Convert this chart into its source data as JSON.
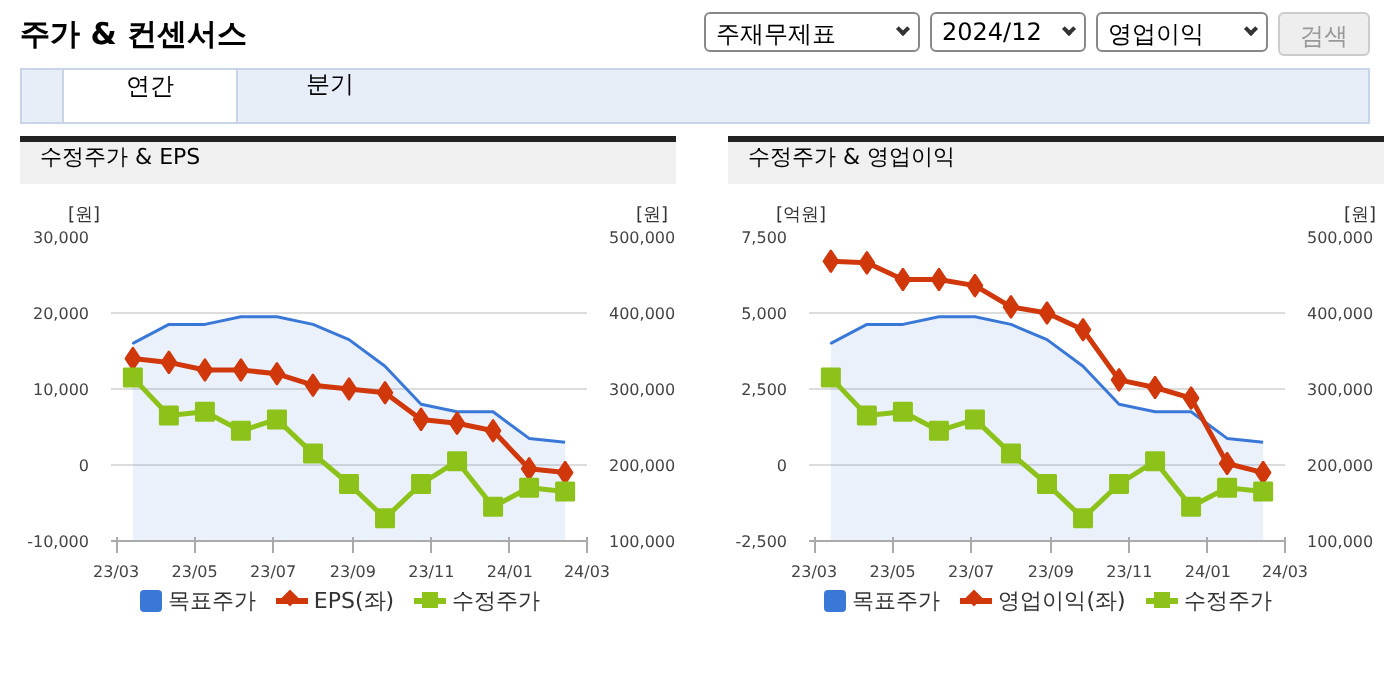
{
  "chart_data": [
    {
      "type": "other",
      "title": "주가 & 컨센서스",
      "annotations": [
        "주재무제표",
        "2024/12",
        "영업이익",
        "검색",
        "연간",
        "분기"
      ]
    },
    {
      "type": "line",
      "title": "수정주가 & EPS",
      "ylabel": "[원]",
      "y2label": "[원]",
      "x": [
        "2023-03-14",
        "2023-04-11",
        "2023-05-09",
        "2023-06-06",
        "2023-07-04",
        "2023-08-01",
        "2023-08-29",
        "2023-09-26",
        "2023-10-24",
        "2023-11-21",
        "2023-12-19",
        "2024-01-16",
        "2024-02-13"
      ],
      "xlim": [
        "2023-02-25",
        "2024-03-01"
      ],
      "xticks": [
        {
          "value": "2023-03-01",
          "label": "23/03"
        },
        {
          "value": "2023-05-01",
          "label": "23/05"
        },
        {
          "value": "2023-07-01",
          "label": "23/07"
        },
        {
          "value": "2023-09-01",
          "label": "23/09"
        },
        {
          "value": "2023-11-01",
          "label": "23/11"
        },
        {
          "value": "2024-01-01",
          "label": "24/01"
        },
        {
          "value": "2024-03-01",
          "label": "24/03"
        }
      ],
      "ylim": [
        -10000,
        30000
      ],
      "yticks": [
        {
          "value": -10000,
          "label": "-10,000"
        },
        0,
        {
          "value": 10000,
          "label": "10,000"
        },
        {
          "value": 20000,
          "label": "20,000"
        },
        {
          "value": 30000,
          "label": "30,000"
        }
      ],
      "y2lim": [
        100000,
        500000
      ],
      "y2ticks": [
        {
          "value": 100000,
          "label": "100,000"
        },
        {
          "value": 200000,
          "label": "200,000"
        },
        {
          "value": 300000,
          "label": "300,000"
        },
        {
          "value": 400000,
          "label": "400,000"
        },
        {
          "value": 500000,
          "label": "500,000"
        }
      ],
      "grid": "y",
      "legend": "bottom",
      "series": [
        {
          "name": "목표주가",
          "type": "area",
          "axis": "y2",
          "color": "#3a78d8",
          "marker": "none",
          "values": [
            360000,
            385000,
            385000,
            395000,
            395000,
            385000,
            365000,
            330000,
            280000,
            270000,
            270000,
            235000,
            230000
          ]
        },
        {
          "name": "EPS(좌)",
          "type": "line",
          "axis": "y",
          "color": "#d0380c",
          "marker": "diamond",
          "values": [
            14000,
            13500,
            12500,
            12500,
            12000,
            10500,
            10000,
            9500,
            6000,
            5500,
            4500,
            -500,
            -1000
          ]
        },
        {
          "name": "수정주가",
          "type": "line",
          "axis": "y2",
          "color": "#8cc21a",
          "marker": "square",
          "values": [
            315000,
            265000,
            270000,
            245000,
            260000,
            215000,
            175000,
            130000,
            175000,
            205000,
            145000,
            170000,
            165000
          ]
        }
      ]
    },
    {
      "type": "line",
      "title": "수정주가 & 영업이익",
      "ylabel": "[억원]",
      "y2label": "[원]",
      "x": [
        "2023-03-14",
        "2023-04-11",
        "2023-05-09",
        "2023-06-06",
        "2023-07-04",
        "2023-08-01",
        "2023-08-29",
        "2023-09-26",
        "2023-10-24",
        "2023-11-21",
        "2023-12-19",
        "2024-01-16",
        "2024-02-13"
      ],
      "xlim": [
        "2023-02-25",
        "2024-03-01"
      ],
      "xticks": [
        {
          "value": "2023-03-01",
          "label": "23/03"
        },
        {
          "value": "2023-05-01",
          "label": "23/05"
        },
        {
          "value": "2023-07-01",
          "label": "23/07"
        },
        {
          "value": "2023-09-01",
          "label": "23/09"
        },
        {
          "value": "2023-11-01",
          "label": "23/11"
        },
        {
          "value": "2024-01-01",
          "label": "24/01"
        },
        {
          "value": "2024-03-01",
          "label": "24/03"
        }
      ],
      "ylim": [
        -2500,
        7500
      ],
      "yticks": [
        {
          "value": -2500,
          "label": "-2,500"
        },
        0,
        {
          "value": 2500,
          "label": "2,500"
        },
        {
          "value": 5000,
          "label": "5,000"
        },
        {
          "value": 7500,
          "label": "7,500"
        }
      ],
      "y2lim": [
        100000,
        500000
      ],
      "y2ticks": [
        {
          "value": 100000,
          "label": "100,000"
        },
        {
          "value": 200000,
          "label": "200,000"
        },
        {
          "value": 300000,
          "label": "300,000"
        },
        {
          "value": 400000,
          "label": "400,000"
        },
        {
          "value": 500000,
          "label": "500,000"
        }
      ],
      "grid": "y",
      "legend": "bottom",
      "series": [
        {
          "name": "목표주가",
          "type": "area",
          "axis": "y2",
          "color": "#3a78d8",
          "marker": "none",
          "values": [
            360000,
            385000,
            385000,
            395000,
            395000,
            385000,
            365000,
            330000,
            280000,
            270000,
            270000,
            235000,
            230000
          ]
        },
        {
          "name": "영업이익(좌)",
          "type": "line",
          "axis": "y",
          "color": "#d0380c",
          "marker": "diamond",
          "values": [
            6700,
            6650,
            6100,
            6100,
            5900,
            5200,
            5000,
            4450,
            2800,
            2550,
            2200,
            50,
            -250
          ]
        },
        {
          "name": "수정주가",
          "type": "line",
          "axis": "y2",
          "color": "#8cc21a",
          "marker": "square",
          "values": [
            315000,
            265000,
            270000,
            245000,
            260000,
            215000,
            175000,
            130000,
            175000,
            205000,
            145000,
            170000,
            165000
          ]
        }
      ]
    }
  ]
}
